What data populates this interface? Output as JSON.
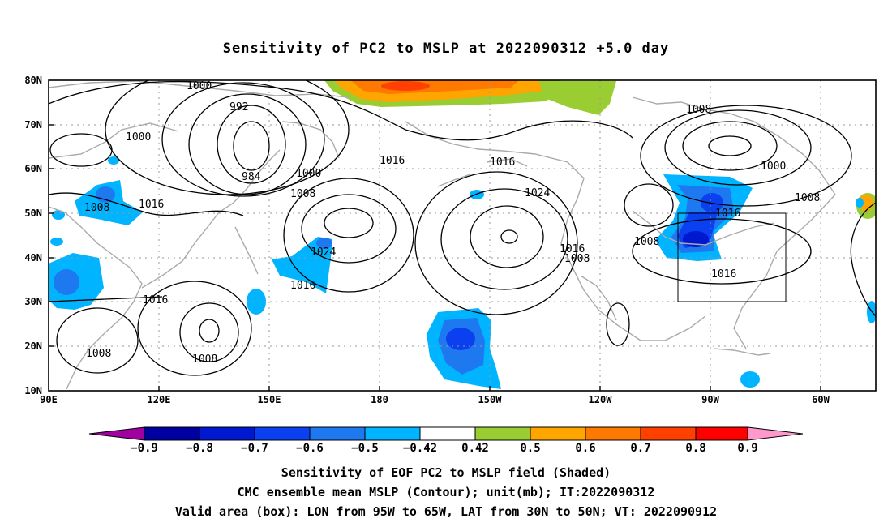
{
  "title": "Sensitivity of PC2 to MSLP at 2022090312 +5.0 day",
  "map": {
    "lat_labels": [
      "80N",
      "70N",
      "60N",
      "50N",
      "40N",
      "30N",
      "20N",
      "10N"
    ],
    "lon_labels": [
      "90E",
      "120E",
      "150E",
      "180",
      "150W",
      "120W",
      "90W",
      "60W"
    ],
    "contour_labels": [
      "1000",
      "992",
      "984",
      "1000",
      "1008",
      "1000",
      "1008",
      "1016",
      "1016",
      "1024",
      "1016",
      "1016",
      "1024",
      "1016",
      "1008",
      "1016",
      "1008",
      "1008",
      "1008",
      "1016",
      "1008",
      "1000",
      "1008",
      "1016",
      "1008"
    ],
    "box": {
      "lon": [
        "95W",
        "65W"
      ],
      "lat": [
        "30N",
        "50N"
      ]
    }
  },
  "colorbar": {
    "labels": [
      "−0.9",
      "−0.8",
      "−0.7",
      "−0.6",
      "−0.5",
      "−0.42",
      "0.42",
      "0.5",
      "0.6",
      "0.7",
      "0.8",
      "0.9"
    ],
    "colors": [
      "#a000a0",
      "#0000a0",
      "#0018d0",
      "#0a40f0",
      "#1e78f0",
      "#00b4ff",
      "#ffffff",
      "#9acd32",
      "#ffa500",
      "#ff7800",
      "#ff4000",
      "#ff0000",
      "#ff99cc"
    ]
  },
  "captions": [
    "Sensitivity of EOF PC2 to MSLP field (Shaded)",
    "CMC ensemble mean MSLP (Contour); unit(mb); IT:2022090312",
    "Valid area (box): LON from 95W to 65W, LAT from 30N to 50N; VT: 2022090912"
  ]
}
